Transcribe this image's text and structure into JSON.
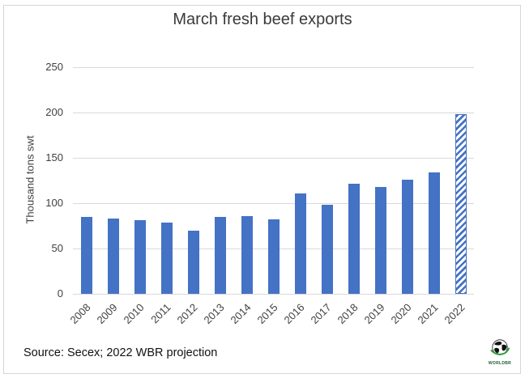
{
  "chart_data": {
    "type": "bar",
    "title": "March fresh beef exports",
    "xlabel": "",
    "ylabel": "Thousand tons swt",
    "categories": [
      "2008",
      "2009",
      "2010",
      "2011",
      "2012",
      "2013",
      "2014",
      "2015",
      "2016",
      "2017",
      "2018",
      "2019",
      "2020",
      "2021",
      "2022"
    ],
    "values": [
      85,
      83,
      81,
      79,
      70,
      85,
      86,
      82,
      111,
      98,
      121,
      118,
      126,
      134,
      198
    ],
    "ylim": [
      0,
      250
    ],
    "yticks": [
      0,
      50,
      100,
      150,
      200,
      250
    ],
    "grid": true,
    "legend": "none",
    "bar_color": "#4472C4",
    "gridline_color": "#d9d9d9",
    "projection": {
      "category": "2022",
      "style": "diagonal-hatch",
      "note": "hatched bar denotes projection"
    }
  },
  "footer": {
    "source": "Source: Secex; 2022 WBR projection",
    "logo_text": "WORLDBR"
  }
}
